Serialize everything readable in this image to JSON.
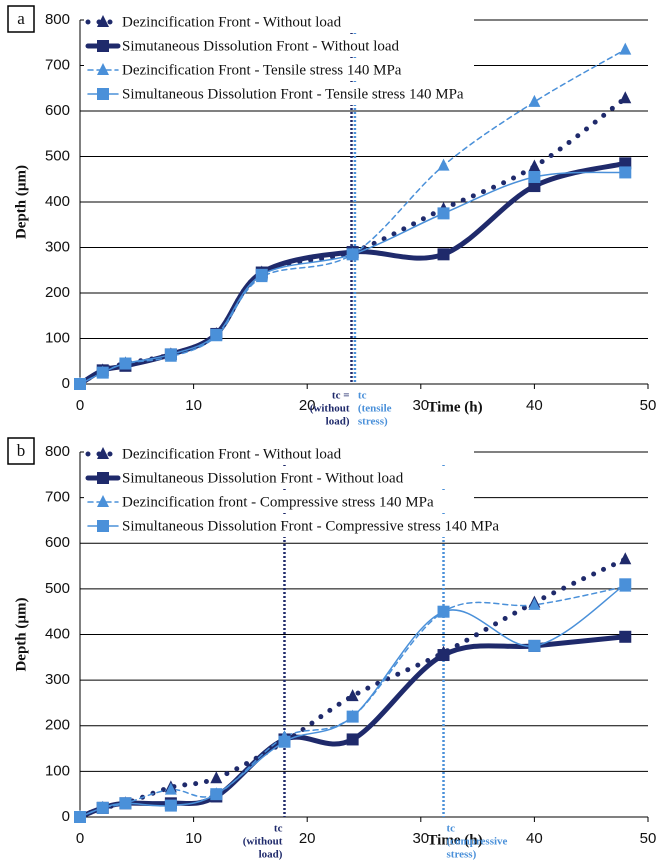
{
  "chart_data": [
    {
      "type": "line",
      "panel_label": "a",
      "x_label": "Time (h)",
      "y_label": "Depth (µm)",
      "x": [
        0,
        2,
        4,
        8,
        12,
        16,
        24,
        32,
        40,
        48
      ],
      "xlim": [
        0,
        50
      ],
      "xticks": [
        0,
        10,
        20,
        30,
        40,
        50
      ],
      "ylim": [
        0,
        800
      ],
      "yticks": [
        0,
        100,
        200,
        300,
        400,
        500,
        600,
        700,
        800
      ],
      "grid": true,
      "legend": "upper-left",
      "series": [
        {
          "name": "Dezincification Front - Without load",
          "color": "#1f2a6b",
          "line": "dotted",
          "marker": "triangle",
          "width": 5,
          "values": [
            0,
            30,
            45,
            65,
            110,
            245,
            290,
            385,
            478,
            628
          ]
        },
        {
          "name": "Simutaneous Dissolution Front - Without load",
          "color": "#1f2a6b",
          "line": "solid",
          "marker": "square",
          "width": 5,
          "values": [
            0,
            30,
            40,
            65,
            110,
            245,
            290,
            285,
            435,
            485
          ]
        },
        {
          "name": "Dezincification Front - Tensile stress 140 MPa",
          "color": "#4a90d9",
          "line": "dashed",
          "marker": "triangle",
          "width": 1.5,
          "values": [
            0,
            25,
            45,
            60,
            105,
            235,
            285,
            480,
            620,
            735
          ]
        },
        {
          "name": "Simultaneous Dissolution Front - Tensile stress 140 MPa",
          "color": "#4a90d9",
          "line": "solid",
          "marker": "square",
          "width": 1.5,
          "values": [
            0,
            25,
            45,
            65,
            108,
            240,
            285,
            375,
            455,
            465
          ]
        }
      ],
      "annotations": [
        {
          "x": 23.9,
          "color": "#1f2a6b",
          "lines": [
            "tc =",
            "(without",
            "load)"
          ]
        },
        {
          "x": 24.2,
          "color": "#4a90d9",
          "lines": [
            "tc",
            "(tensile",
            "stress)"
          ]
        }
      ]
    },
    {
      "type": "line",
      "panel_label": "b",
      "x_label": "Time (h)",
      "y_label": "Depth (µm)",
      "x": [
        0,
        2,
        4,
        8,
        12,
        18,
        24,
        32,
        40,
        48
      ],
      "xlim": [
        0,
        50
      ],
      "xticks": [
        0,
        10,
        20,
        30,
        40,
        50
      ],
      "ylim": [
        0,
        800
      ],
      "yticks": [
        0,
        100,
        200,
        300,
        400,
        500,
        600,
        700,
        800
      ],
      "grid": true,
      "legend": "upper-left",
      "series": [
        {
          "name": "Dezincification Front - Without load",
          "color": "#1f2a6b",
          "line": "dotted",
          "marker": "triangle",
          "width": 5,
          "values": [
            0,
            20,
            30,
            65,
            85,
            165,
            265,
            360,
            470,
            565
          ]
        },
        {
          "name": "Simultaneous Dissolution Front - Without load",
          "color": "#1f2a6b",
          "line": "solid",
          "marker": "square",
          "width": 5,
          "values": [
            0,
            20,
            30,
            30,
            45,
            170,
            170,
            355,
            375,
            395
          ]
        },
        {
          "name": "Dezincification front - Compressive stress 140 MPa",
          "color": "#4a90d9",
          "line": "dashed",
          "marker": "triangle",
          "width": 1.5,
          "values": [
            0,
            20,
            30,
            60,
            50,
            175,
            220,
            450,
            465,
            505
          ]
        },
        {
          "name": "Simultaneous Dissolution Front - Compressive stress 140 MPa",
          "color": "#4a90d9",
          "line": "solid",
          "marker": "square",
          "width": 1.5,
          "values": [
            0,
            20,
            30,
            25,
            50,
            165,
            220,
            450,
            375,
            510
          ]
        }
      ],
      "annotations": [
        {
          "x": 18,
          "color": "#1f2a6b",
          "lines": [
            "tc",
            "(without",
            "load)"
          ]
        },
        {
          "x": 32,
          "color": "#4a90d9",
          "lines": [
            "tc",
            "(compressive",
            "stress)"
          ]
        }
      ]
    }
  ]
}
